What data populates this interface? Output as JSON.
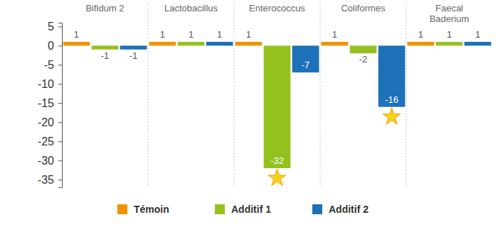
{
  "chart_data": {
    "type": "bar",
    "categories": [
      "Bifidum 2",
      "Lactobacillus",
      "Enterococcus",
      "Coliformes",
      "Faecal\nBaderium"
    ],
    "series": [
      {
        "name": "Témoin",
        "color": "#f39200",
        "values": [
          1,
          1,
          1,
          1,
          1
        ],
        "significant": [
          false,
          false,
          false,
          false,
          false
        ]
      },
      {
        "name": "Additif 1",
        "color": "#95c11f",
        "values": [
          -1,
          1,
          -32,
          -2,
          1
        ],
        "significant": [
          false,
          false,
          true,
          false,
          false
        ]
      },
      {
        "name": "Additif 2",
        "color": "#1d71b8",
        "values": [
          -1,
          1,
          -7,
          -16,
          1
        ],
        "significant": [
          false,
          false,
          false,
          true,
          false
        ]
      }
    ],
    "ylim": [
      -37,
      6
    ],
    "yticks": [
      5,
      0,
      -5,
      -10,
      -15,
      -20,
      -25,
      -30,
      -35
    ],
    "grid": false,
    "data_labels": true,
    "legend": "bottom"
  }
}
